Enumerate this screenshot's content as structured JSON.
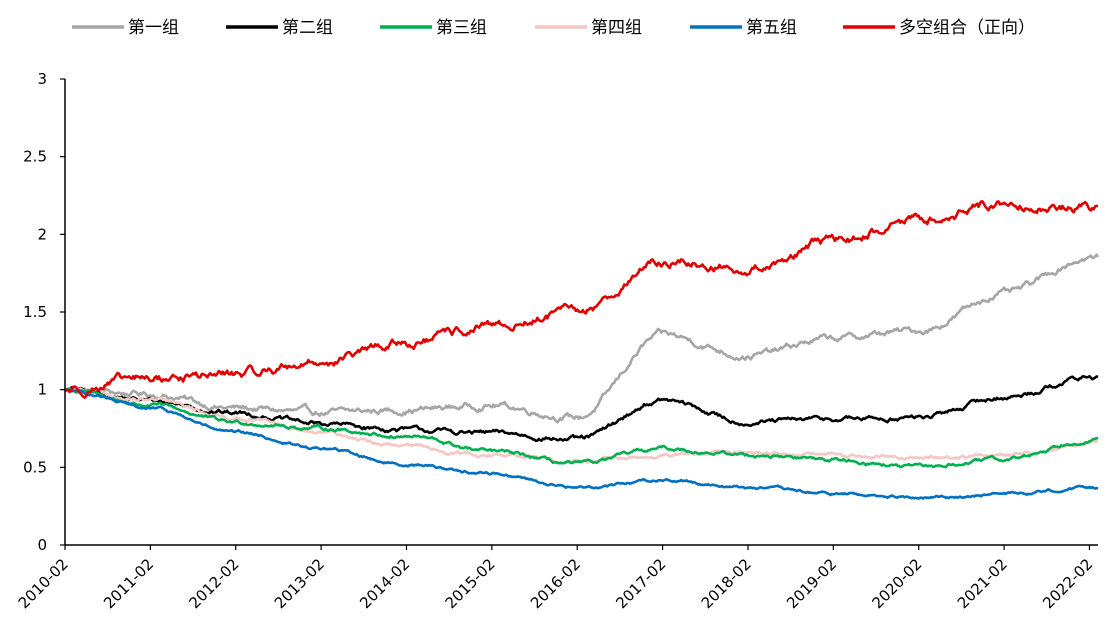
{
  "chart_data": {
    "type": "line",
    "title": "",
    "xlabel": "",
    "ylabel": "",
    "ylim": [
      0,
      3
    ],
    "yticks": [
      "0",
      "0.5",
      "1",
      "1.5",
      "2",
      "2.5",
      "3"
    ],
    "x": [
      "2010-02",
      "2011-02",
      "2012-02",
      "2013-02",
      "2014-02",
      "2015-02",
      "2016-02",
      "2017-02",
      "2018-02",
      "2019-02",
      "2020-02",
      "2021-02",
      "2022-02"
    ],
    "xlim": [
      0,
      12.1
    ],
    "grid": false,
    "legend_position": "top",
    "series": [
      {
        "name": "第一组",
        "color": "#a6a6a6",
        "values": [
          1.0,
          0.97,
          0.88,
          0.85,
          0.87,
          0.9,
          0.82,
          1.35,
          1.22,
          1.33,
          1.38,
          1.62,
          1.85
        ]
      },
      {
        "name": "第二组",
        "color": "#000000",
        "values": [
          1.0,
          0.93,
          0.85,
          0.78,
          0.74,
          0.72,
          0.68,
          0.93,
          0.79,
          0.81,
          0.82,
          0.95,
          1.08
        ]
      },
      {
        "name": "第三组",
        "color": "#00b050",
        "values": [
          1.0,
          0.9,
          0.79,
          0.75,
          0.7,
          0.6,
          0.52,
          0.62,
          0.58,
          0.55,
          0.5,
          0.55,
          0.68
        ]
      },
      {
        "name": "第四组",
        "color": "#f4c7c3",
        "values": [
          1.0,
          0.93,
          0.82,
          0.72,
          0.63,
          0.58,
          0.54,
          0.57,
          0.6,
          0.58,
          0.56,
          0.58,
          0.65
        ]
      },
      {
        "name": "第五组",
        "color": "#0070c0",
        "values": [
          1.0,
          0.88,
          0.72,
          0.62,
          0.52,
          0.46,
          0.37,
          0.42,
          0.37,
          0.33,
          0.3,
          0.33,
          0.37
        ]
      },
      {
        "name": "多空组合（正向）",
        "color": "#e00000",
        "values": [
          1.0,
          1.07,
          1.1,
          1.18,
          1.3,
          1.4,
          1.5,
          1.82,
          1.78,
          1.95,
          2.1,
          2.2,
          2.17
        ]
      }
    ]
  }
}
